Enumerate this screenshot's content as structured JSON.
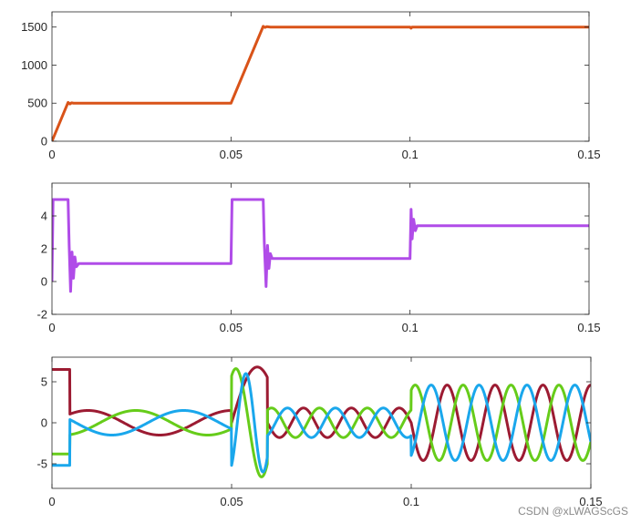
{
  "watermark": "CSDN @xLWAGScGS",
  "chart_data": [
    {
      "type": "line",
      "xlim": [
        0,
        0.15
      ],
      "ylim": [
        0,
        1700
      ],
      "xticks": [
        0,
        0.05,
        0.1,
        0.15
      ],
      "xtick_labels": [
        "0",
        "0.05",
        "0.1",
        "0.15"
      ],
      "yticks": [
        0,
        500,
        1000,
        1500
      ],
      "ytick_labels": [
        "0",
        "500",
        "1000",
        "1500"
      ],
      "grid": false,
      "series": [
        {
          "color": "#d95319",
          "x": [
            0,
            0.0045,
            0.005,
            0.0055,
            0.006,
            0.05,
            0.059,
            0.0595,
            0.06,
            0.061,
            0.1,
            0.1003,
            0.1006,
            0.15
          ],
          "y": [
            0,
            510,
            490,
            505,
            500,
            500,
            1510,
            1495,
            1505,
            1500,
            1500,
            1485,
            1500,
            1500
          ]
        }
      ]
    },
    {
      "type": "line",
      "xlim": [
        0,
        0.15
      ],
      "ylim": [
        -2,
        6
      ],
      "xticks": [
        0,
        0.05,
        0.1,
        0.15
      ],
      "xtick_labels": [
        "0",
        "0.05",
        "0.1",
        "0.15"
      ],
      "yticks": [
        -2,
        0,
        2,
        4
      ],
      "ytick_labels": [
        "-2",
        "0",
        "2",
        "4"
      ],
      "grid": false,
      "series": [
        {
          "color": "#b04ce8",
          "x": [
            0,
            0.0003,
            0.0045,
            0.0048,
            0.0052,
            0.0056,
            0.006,
            0.0064,
            0.0068,
            0.0075,
            0.05,
            0.0503,
            0.059,
            0.0593,
            0.0598,
            0.0602,
            0.0606,
            0.061,
            0.0615,
            0.1,
            0.1003,
            0.1006,
            0.101,
            0.1015,
            0.102,
            0.15
          ],
          "y": [
            0,
            5,
            5,
            2.2,
            -0.6,
            1.8,
            0.2,
            1.5,
            0.9,
            1.1,
            1.1,
            5,
            5,
            2.4,
            -0.3,
            2.2,
            0.8,
            1.7,
            1.4,
            1.4,
            4.4,
            2.6,
            3.8,
            3.1,
            3.4,
            3.4
          ]
        }
      ]
    },
    {
      "type": "line",
      "xlim": [
        0,
        0.15
      ],
      "ylim": [
        -8,
        8
      ],
      "xticks": [
        0,
        0.05,
        0.1,
        0.15
      ],
      "xtick_labels": [
        "0",
        "0.05",
        "0.1",
        "0.15"
      ],
      "yticks": [
        -5,
        0,
        5
      ],
      "ytick_labels": [
        "-5",
        "0",
        "5"
      ],
      "grid": false,
      "phase_currents": {
        "segments": [
          {
            "t0": 0.006,
            "t1": 0.05,
            "amplitude": 1.5,
            "frequency_hz": 25
          },
          {
            "t0": 0.061,
            "t1": 0.1,
            "amplitude": 1.8,
            "frequency_hz": 75
          },
          {
            "t0": 0.1015,
            "t1": 0.15,
            "amplitude": 4.6,
            "frequency_hz": 75
          }
        ],
        "startup": {
          "t1": 0.005,
          "values": [
            6.5,
            -3.8,
            -5.2
          ]
        },
        "mid_transient": {
          "t0": 0.05,
          "t1": 0.06,
          "peaks": [
            6.8,
            -6.6,
            -6.0
          ]
        }
      },
      "series": [
        {
          "color": "#9c1b32",
          "phase_deg": 0
        },
        {
          "color": "#66cc1a",
          "phase_deg": -120
        },
        {
          "color": "#1aa7ec",
          "phase_deg": 120
        }
      ]
    }
  ]
}
